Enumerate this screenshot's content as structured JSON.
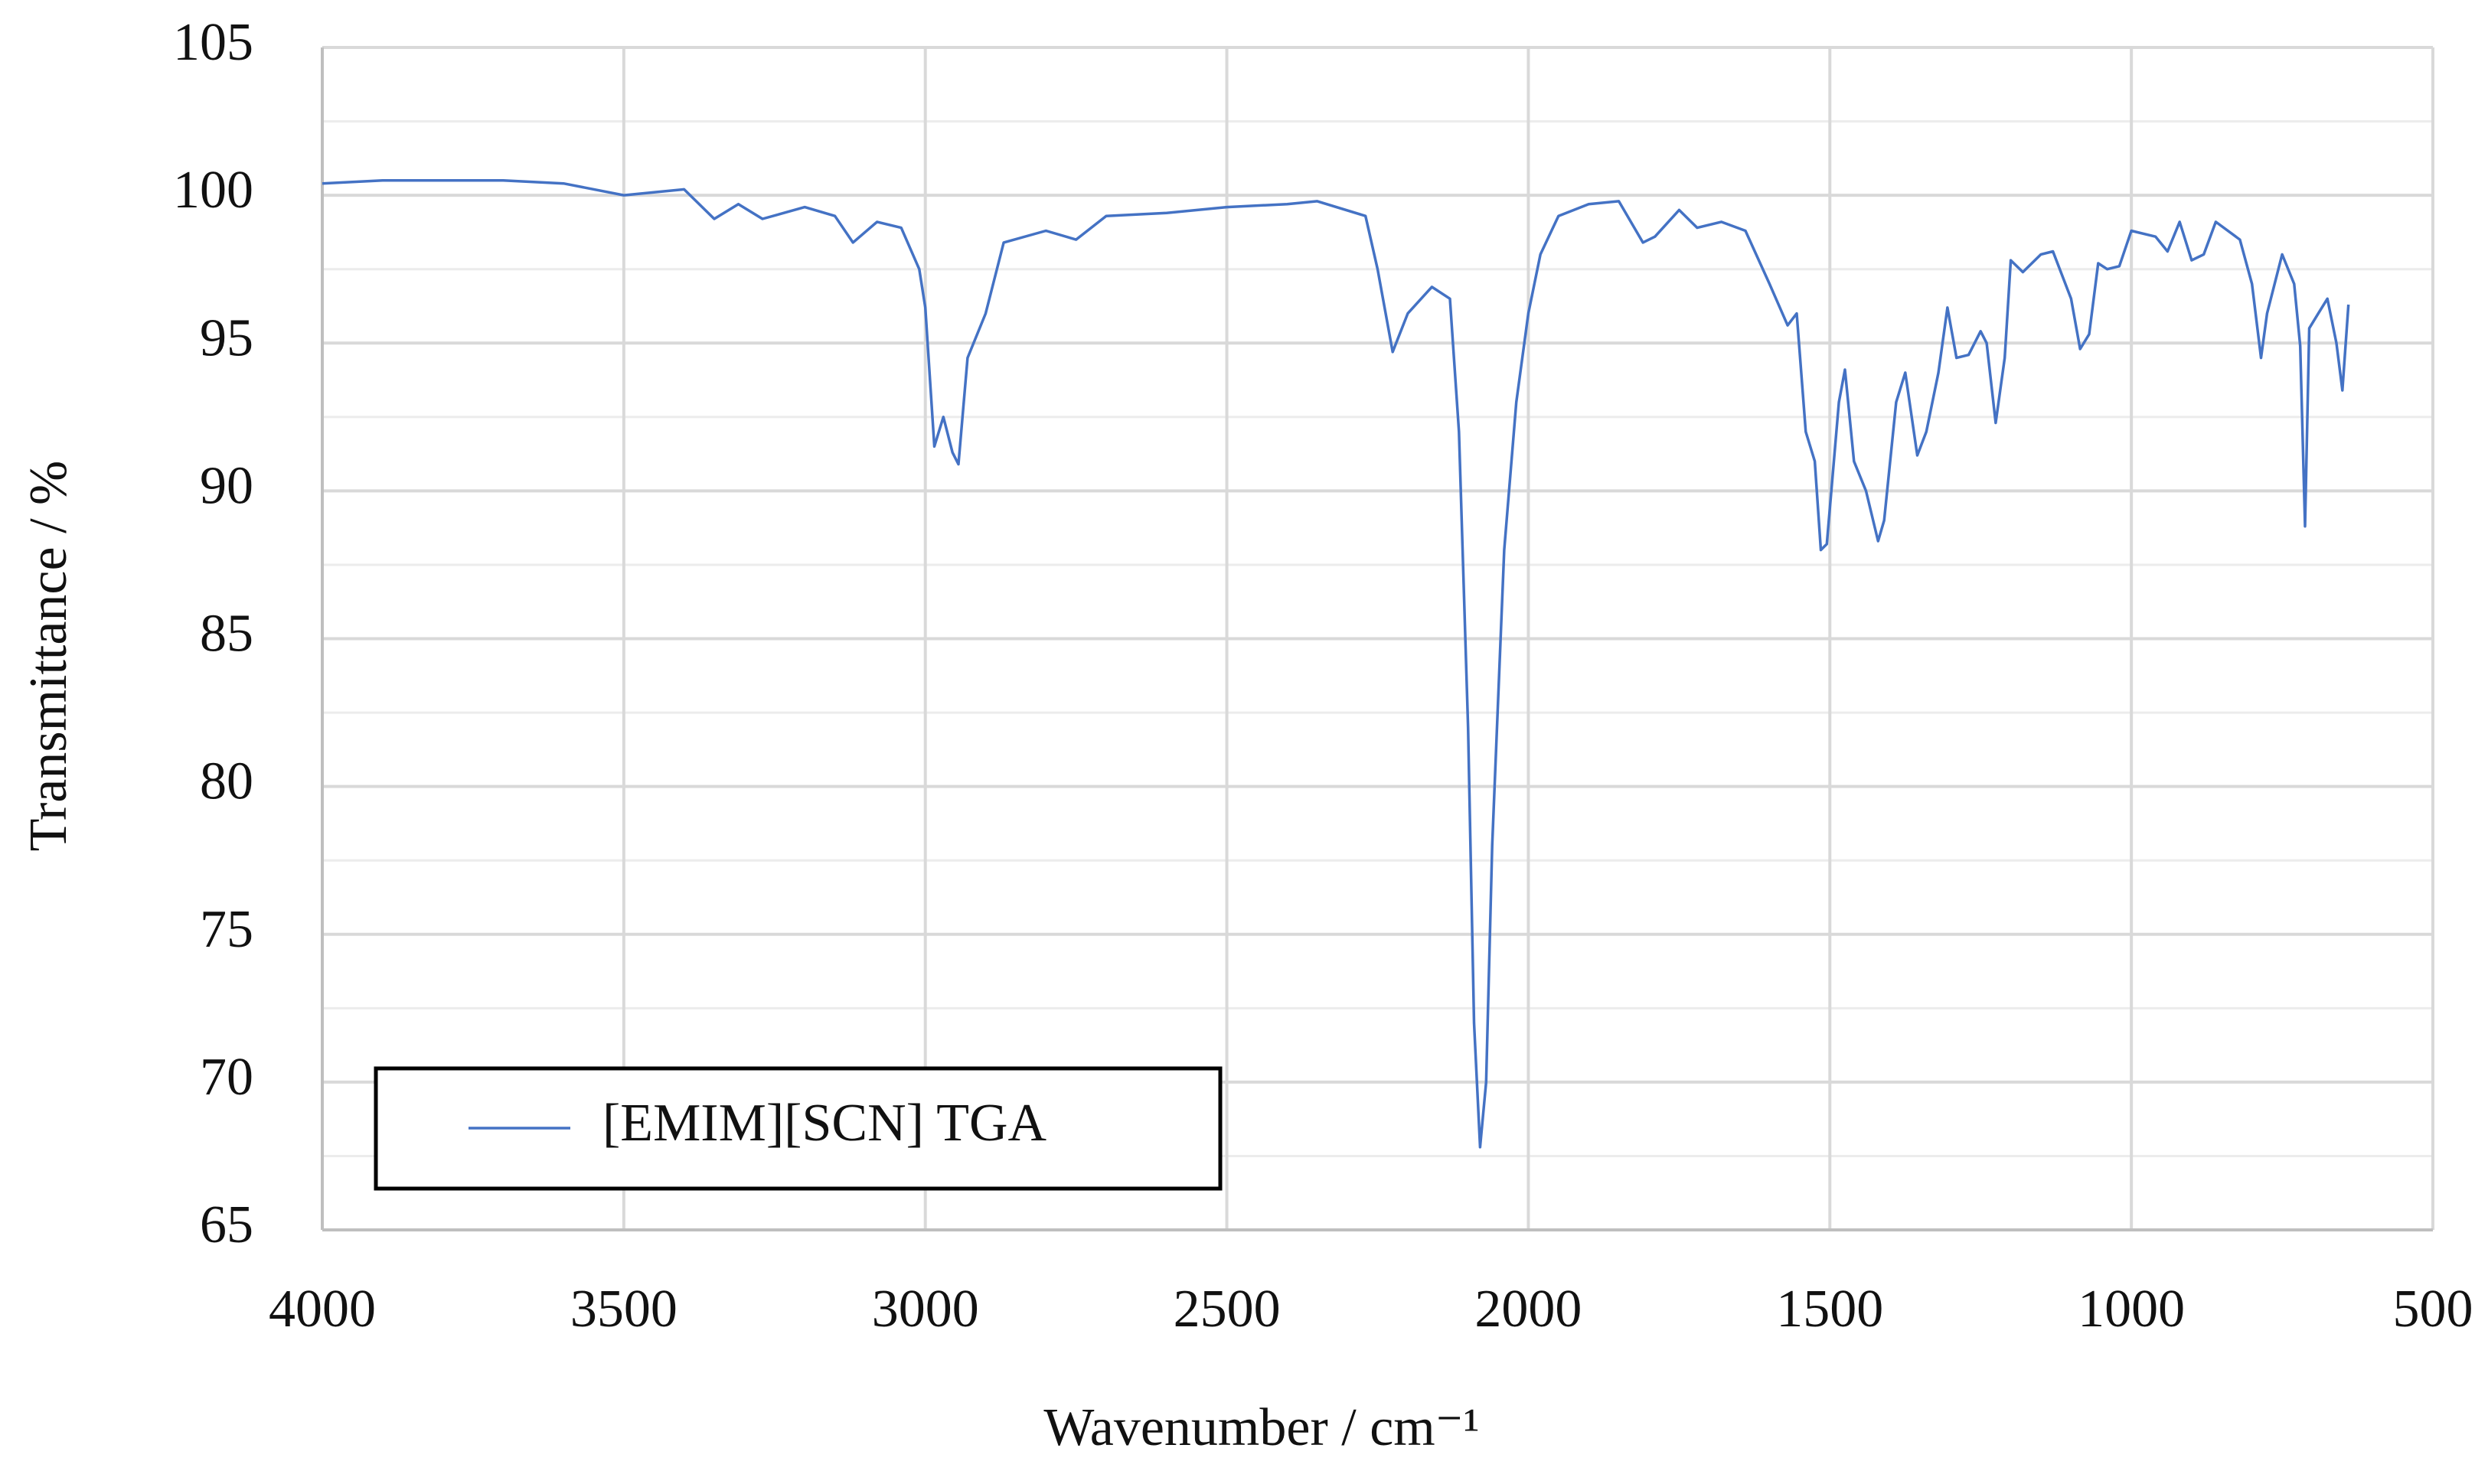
{
  "chart_data": {
    "type": "line",
    "x_label": "Wavenumber / cm⁻¹",
    "y_label": "Transmittance / %",
    "x": [
      4000,
      3900,
      3800,
      3700,
      3600,
      3500,
      3450,
      3400,
      3350,
      3310,
      3270,
      3200,
      3150,
      3120,
      3080,
      3040,
      3010,
      3000,
      2985,
      2970,
      2955,
      2945,
      2930,
      2900,
      2870,
      2800,
      2750,
      2700,
      2600,
      2500,
      2400,
      2350,
      2270,
      2250,
      2225,
      2200,
      2160,
      2130,
      2115,
      2100,
      2090,
      2080,
      2070,
      2060,
      2040,
      2020,
      2000,
      1980,
      1950,
      1900,
      1850,
      1810,
      1790,
      1750,
      1720,
      1680,
      1640,
      1600,
      1570,
      1555,
      1540,
      1525,
      1515,
      1505,
      1485,
      1475,
      1460,
      1440,
      1420,
      1410,
      1390,
      1375,
      1355,
      1340,
      1320,
      1305,
      1290,
      1270,
      1250,
      1240,
      1225,
      1210,
      1200,
      1180,
      1150,
      1130,
      1100,
      1085,
      1070,
      1055,
      1040,
      1020,
      1000,
      960,
      940,
      920,
      900,
      880,
      860,
      820,
      800,
      785,
      775,
      750,
      730,
      720,
      712,
      705,
      690,
      675,
      660,
      650,
      640
    ],
    "series": [
      {
        "name": "[EMIM][SCN] TGA",
        "color": "#4472c4",
        "values": [
          100.4,
          100.5,
          100.5,
          100.5,
          100.4,
          100.0,
          100.1,
          100.2,
          99.2,
          99.7,
          99.2,
          99.6,
          99.3,
          98.4,
          99.1,
          98.9,
          97.5,
          96.2,
          91.5,
          92.5,
          91.3,
          90.9,
          94.5,
          96.0,
          98.4,
          98.8,
          98.5,
          99.3,
          99.4,
          99.6,
          99.7,
          99.8,
          99.3,
          97.5,
          94.7,
          96.0,
          96.9,
          96.5,
          92.0,
          82.0,
          72.0,
          67.8,
          70.0,
          78.0,
          88.0,
          93.0,
          96.0,
          98.0,
          99.3,
          99.7,
          99.8,
          98.4,
          98.6,
          99.5,
          98.9,
          99.1,
          98.8,
          97.0,
          95.6,
          96.0,
          92.0,
          91.0,
          88.0,
          88.2,
          93.0,
          94.1,
          91.0,
          90.0,
          88.3,
          89.0,
          93.0,
          94.0,
          91.2,
          92.0,
          94.0,
          96.2,
          94.5,
          94.6,
          95.4,
          95.0,
          92.3,
          94.5,
          97.8,
          97.4,
          98.0,
          98.1,
          96.5,
          94.8,
          95.3,
          97.7,
          97.5,
          97.6,
          98.8,
          98.6,
          98.1,
          99.1,
          97.8,
          98.0,
          99.1,
          98.5,
          97.0,
          94.5,
          96.0,
          98.0,
          97.0,
          94.9,
          88.8,
          95.5,
          96.0,
          96.5,
          95.0,
          93.4,
          96.3
        ]
      }
    ],
    "xlim": [
      4000,
      500
    ],
    "xticks": [
      4000,
      3500,
      3000,
      2500,
      2000,
      1500,
      1000,
      500
    ],
    "ylim": [
      65,
      105
    ],
    "yticks": [
      65,
      70,
      75,
      80,
      85,
      90,
      95,
      100,
      105
    ],
    "yminorticks": [
      67.5,
      72.5,
      77.5,
      82.5,
      87.5,
      92.5,
      97.5,
      102.5
    ],
    "grid": true,
    "legend": "lower left"
  }
}
